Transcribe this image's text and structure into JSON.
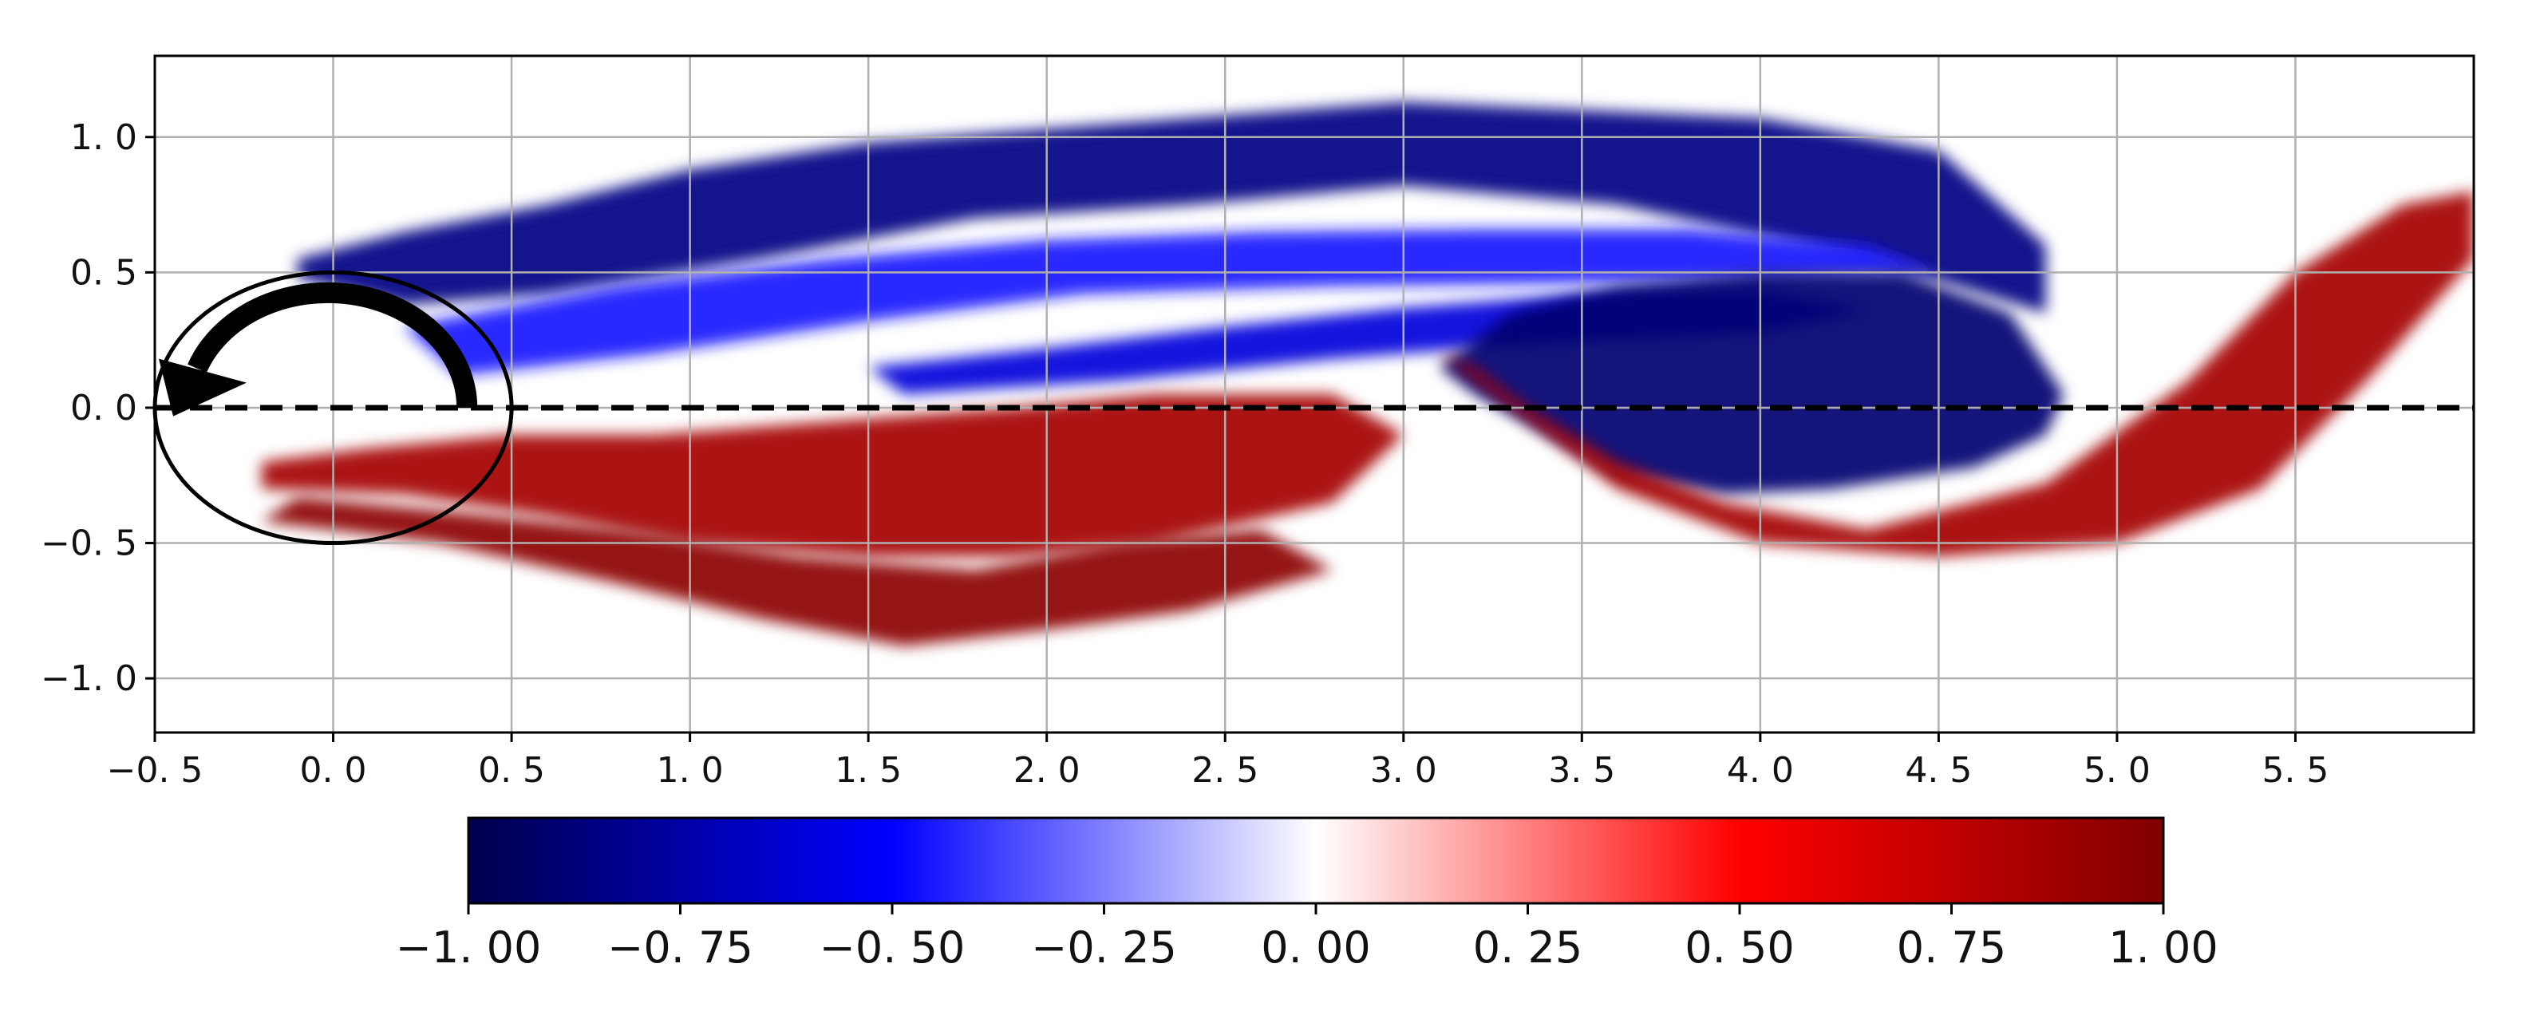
{
  "chart_data": {
    "type": "heatmap",
    "title": "",
    "xlabel": "",
    "ylabel": "",
    "xlim": [
      -0.5,
      6.0
    ],
    "ylim": [
      -1.2,
      1.3
    ],
    "grid": true,
    "x_ticks": [
      -0.5,
      0.0,
      0.5,
      1.0,
      1.5,
      2.0,
      2.5,
      3.0,
      3.5,
      4.0,
      4.5,
      5.0,
      5.5
    ],
    "x_tick_labels": [
      "−0. 5",
      "0. 0",
      "0. 5",
      "1. 0",
      "1. 5",
      "2. 0",
      "2. 5",
      "3. 0",
      "3. 5",
      "4. 0",
      "4. 5",
      "5. 0",
      "5. 5"
    ],
    "y_ticks": [
      1.0,
      0.5,
      0.0,
      -0.5,
      -1.0
    ],
    "y_tick_labels": [
      "1. 0",
      "0. 5",
      "0. 0",
      "−0. 5",
      "−1. 0"
    ],
    "colormap": "seismic",
    "colors": {
      "negative_end": "#00004c",
      "negative_mid": "#0000ff",
      "zero": "#ffffff",
      "positive_mid": "#ff0000",
      "positive_end": "#7f0000",
      "overlay": "#000000",
      "grid": "#b0b0b0"
    },
    "colorbar": {
      "orientation": "horizontal",
      "range": [
        -1.0,
        1.0
      ],
      "ticks": [
        -1.0,
        -0.75,
        -0.5,
        -0.25,
        0.0,
        0.25,
        0.5,
        0.75,
        1.0
      ],
      "tick_labels": [
        "−1. 00",
        "−0. 75",
        "−0. 50",
        "−0. 25",
        "0. 00",
        "0. 25",
        "0. 50",
        "0. 75",
        "1. 00"
      ]
    },
    "centerline_y": 0.0,
    "cylinder": {
      "center": [
        0.0,
        0.0
      ],
      "radius_x": 0.5,
      "radius_y": 0.5
    },
    "rotation_arrow": {
      "direction": "counter-clockwise"
    },
    "regions": [
      {
        "name": "upper-shear-layer",
        "sign": "negative",
        "intensity": 0.85,
        "x": [
          -0.1,
          0.2,
          0.6,
          1.0,
          1.5,
          2.0,
          2.5,
          3.0,
          3.5,
          4.0,
          4.5,
          4.8,
          4.8,
          4.3,
          3.6,
          3.0,
          2.4,
          1.8,
          1.2,
          0.6,
          0.2,
          -0.1
        ],
        "y": [
          0.55,
          0.65,
          0.75,
          0.88,
          0.98,
          1.03,
          1.08,
          1.13,
          1.1,
          1.07,
          0.95,
          0.6,
          0.35,
          0.55,
          0.75,
          0.82,
          0.75,
          0.7,
          0.55,
          0.42,
          0.38,
          0.48
        ]
      },
      {
        "name": "upper-recirculation-band",
        "sign": "negative",
        "intensity": 0.45,
        "x": [
          0.2,
          0.8,
          1.4,
          2.0,
          2.6,
          3.2,
          3.8,
          4.3,
          4.5,
          4.1,
          3.4,
          2.8,
          2.1,
          1.5,
          0.9,
          0.35
        ],
        "y": [
          0.3,
          0.45,
          0.55,
          0.62,
          0.65,
          0.66,
          0.66,
          0.6,
          0.5,
          0.48,
          0.46,
          0.45,
          0.42,
          0.32,
          0.2,
          0.12
        ]
      },
      {
        "name": "upper-inner-band",
        "sign": "negative",
        "intensity": 0.6,
        "x": [
          1.5,
          2.0,
          2.5,
          3.0,
          3.5,
          4.0,
          4.3,
          4.0,
          3.4,
          2.8,
          2.2,
          1.6
        ],
        "y": [
          0.15,
          0.22,
          0.3,
          0.37,
          0.42,
          0.43,
          0.36,
          0.28,
          0.24,
          0.18,
          0.1,
          0.05
        ]
      },
      {
        "name": "shed-vortex-blue",
        "sign": "negative",
        "intensity": 0.9,
        "x": [
          3.1,
          3.3,
          3.6,
          4.0,
          4.4,
          4.7,
          4.85,
          4.8,
          4.6,
          4.2,
          3.9,
          3.6,
          3.4,
          3.2
        ],
        "y": [
          0.15,
          0.35,
          0.45,
          0.5,
          0.5,
          0.35,
          0.05,
          -0.1,
          -0.22,
          -0.3,
          -0.32,
          -0.25,
          -0.1,
          0.05
        ]
      },
      {
        "name": "lower-shear-layer",
        "sign": "positive",
        "intensity": 0.85,
        "x": [
          -0.2,
          0.2,
          0.6,
          1.0,
          1.5,
          1.9,
          2.3,
          2.8,
          3.0,
          2.8,
          2.3,
          1.9,
          1.4,
          0.9,
          0.5,
          0.1,
          -0.2
        ],
        "y": [
          -0.3,
          -0.32,
          -0.4,
          -0.5,
          -0.55,
          -0.55,
          -0.5,
          -0.35,
          -0.1,
          0.05,
          0.05,
          0.0,
          -0.05,
          -0.1,
          -0.1,
          -0.15,
          -0.2
        ]
      },
      {
        "name": "lower-outer-edge",
        "sign": "positive",
        "intensity": 0.95,
        "x": [
          -0.2,
          0.3,
          0.8,
          1.2,
          1.6,
          2.0,
          2.4,
          2.8,
          2.6,
          2.2,
          1.8,
          1.3,
          0.8,
          0.3,
          -0.1
        ],
        "y": [
          -0.42,
          -0.5,
          -0.65,
          -0.78,
          -0.88,
          -0.82,
          -0.75,
          -0.6,
          -0.45,
          -0.5,
          -0.6,
          -0.55,
          -0.45,
          -0.38,
          -0.33
        ]
      },
      {
        "name": "downstream-red-lobe",
        "sign": "positive",
        "intensity": 0.85,
        "x": [
          3.1,
          3.3,
          3.6,
          4.0,
          4.5,
          5.0,
          5.4,
          5.7,
          6.0,
          6.0,
          5.8,
          5.5,
          5.2,
          4.8,
          4.3,
          3.9,
          3.6,
          3.35,
          3.2
        ],
        "y": [
          0.2,
          0.0,
          -0.3,
          -0.5,
          -0.55,
          -0.5,
          -0.3,
          0.1,
          0.55,
          0.8,
          0.75,
          0.5,
          0.1,
          -0.28,
          -0.45,
          -0.35,
          -0.2,
          0.0,
          0.15
        ]
      }
    ]
  }
}
